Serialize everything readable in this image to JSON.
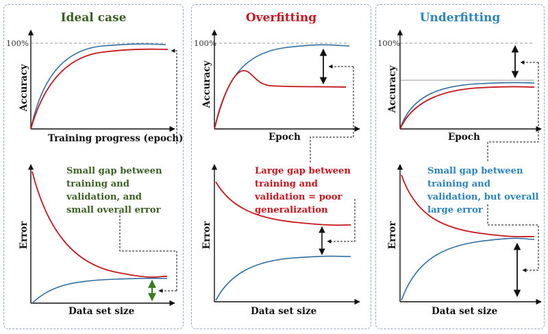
{
  "colors": {
    "training": "#2e6ea3",
    "validation": "#c8161d",
    "ideal": "#3a5f23",
    "overfit": "#c8161d",
    "underfit": "#2b83c0",
    "frame": "#8aa9c8"
  },
  "panels": [
    {
      "id": "ideal",
      "title": "Ideal case",
      "accuracy_xlabel": "Training progress (epoch)",
      "accuracy_ylabel": "Accuracy",
      "max_label": "100%",
      "note": "Small gap between training and validation, and small overall error",
      "error_xlabel": "Data set size",
      "error_ylabel": "Error"
    },
    {
      "id": "overfit",
      "title": "Overfitting",
      "accuracy_xlabel": "Epoch",
      "accuracy_ylabel": "Accuracy",
      "max_label": "100%",
      "note": "Large gap between training and validation = poor generalization",
      "error_xlabel": "Data set size",
      "error_ylabel": "Error"
    },
    {
      "id": "underfit",
      "title": "Underfitting",
      "accuracy_xlabel": "Epoch",
      "accuracy_ylabel": "Accuracy",
      "max_label": "100%",
      "note": "Small gap between training and validation, but overall large error",
      "error_xlabel": "Data set size",
      "error_ylabel": "Error"
    }
  ]
}
